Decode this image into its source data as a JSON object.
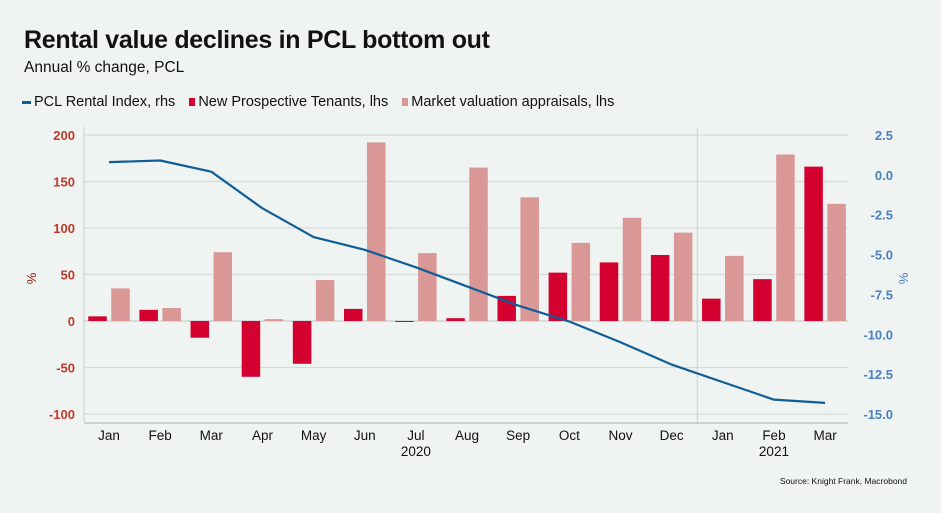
{
  "title": "Rental value declines in PCL bottom out",
  "subtitle": "Annual % change, PCL",
  "source": "Source: Knight Frank, Macrobond",
  "legend": [
    {
      "label": "PCL Rental Index, rhs",
      "color": "#0f5e96",
      "kind": "line"
    },
    {
      "label": "New Prospective Tenants, lhs",
      "color": "#d4002f",
      "kind": "bar"
    },
    {
      "label": "Market valuation appraisals, lhs",
      "color": "#d99796",
      "kind": "bar"
    }
  ],
  "chart_data": {
    "type": "bar",
    "title": "Rental value declines in PCL bottom out",
    "subtitle": "Annual % change, PCL",
    "categories": [
      "Jan",
      "Feb",
      "Mar",
      "Apr",
      "May",
      "Jun",
      "Jul",
      "Aug",
      "Sep",
      "Oct",
      "Nov",
      "Dec",
      "Jan",
      "Feb",
      "Mar"
    ],
    "year_labels": [
      {
        "label": "2020",
        "under": "Jul"
      },
      {
        "label": "2021",
        "under": "Feb"
      }
    ],
    "year_separator_after_index": 11,
    "ylabel_left": "%",
    "ylabel_right": "%",
    "ylim_left": [
      -100,
      200
    ],
    "yticks_left": [
      200,
      150,
      100,
      50,
      0,
      -50,
      -100
    ],
    "ylim_right": [
      -15,
      2.5
    ],
    "yticks_right": [
      "2.5",
      "0.0",
      "-2.5",
      "-5.0",
      "-7.5",
      "-10.0",
      "-12.5",
      "-15.0"
    ],
    "grid": true,
    "legend_position": "top-left",
    "series": [
      {
        "name": "New Prospective Tenants, lhs",
        "type": "bar",
        "axis": "left",
        "color": "#d4002f",
        "values": [
          5,
          12,
          -18,
          -60,
          -46,
          13,
          -1,
          3,
          27,
          52,
          63,
          71,
          24,
          45,
          166
        ]
      },
      {
        "name": "Market valuation appraisals, lhs",
        "type": "bar",
        "axis": "left",
        "color": "#d99796",
        "values": [
          35,
          14,
          74,
          2,
          44,
          192,
          73,
          165,
          133,
          84,
          111,
          95,
          70,
          179,
          126
        ]
      },
      {
        "name": "PCL Rental Index, rhs",
        "type": "line",
        "axis": "right",
        "color": "#0f5e96",
        "values": [
          0.8,
          0.9,
          0.2,
          -2.1,
          -3.9,
          -4.7,
          -5.8,
          -7.0,
          -8.2,
          -9.2,
          -10.5,
          -11.9,
          -13.0,
          -14.1,
          -14.3
        ]
      }
    ]
  }
}
